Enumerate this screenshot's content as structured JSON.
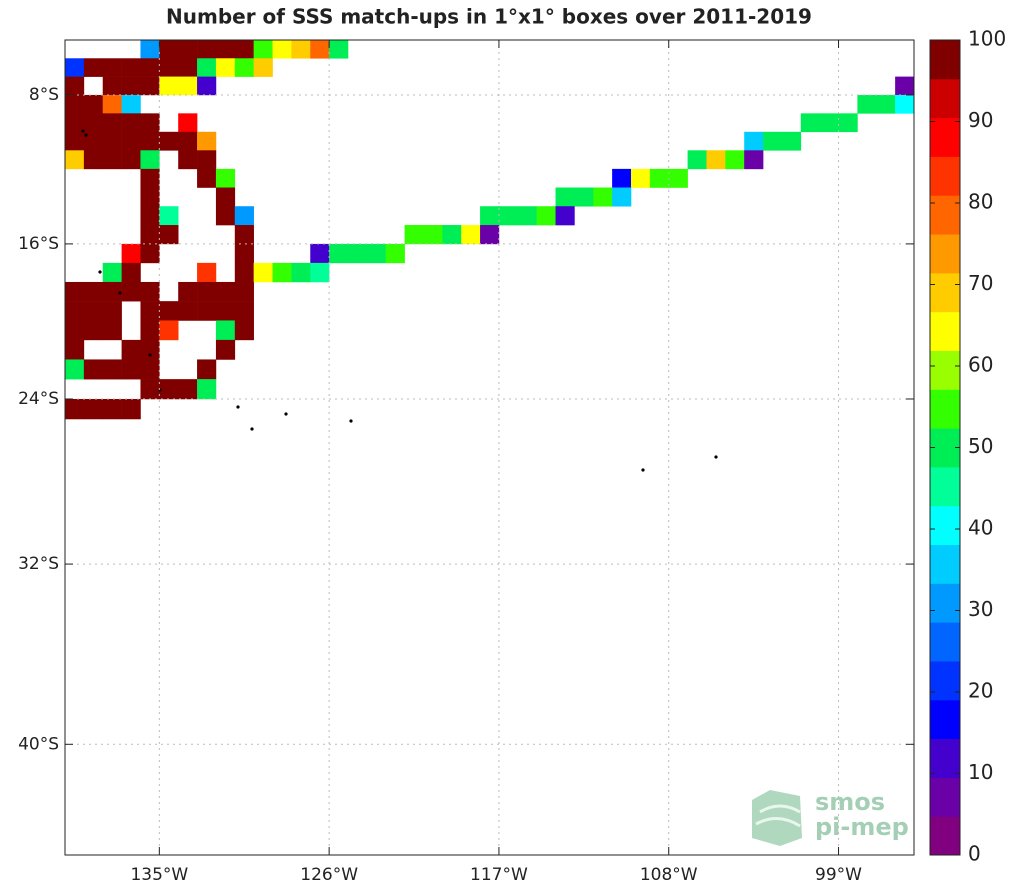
{
  "chart_data": {
    "type": "heatmap-map",
    "title": "Number of SSS match-ups in 1°x1° boxes over 2011-2019",
    "projection": "mercator",
    "xlim": [
      -140,
      -95
    ],
    "ylim": [
      -44.5,
      -5
    ],
    "xticks": [
      {
        "value": -135,
        "label": "135°W"
      },
      {
        "value": -126,
        "label": "126°W"
      },
      {
        "value": -117,
        "label": "117°W"
      },
      {
        "value": -108,
        "label": "108°W"
      },
      {
        "value": -99,
        "label": "99°W"
      }
    ],
    "yticks": [
      {
        "value": -8,
        "label": "8°S"
      },
      {
        "value": -16,
        "label": "16°S"
      },
      {
        "value": -24,
        "label": "24°S"
      },
      {
        "value": -32,
        "label": "32°S"
      },
      {
        "value": -40,
        "label": "40°S"
      }
    ],
    "grid": true,
    "clim": [
      0,
      100
    ],
    "cticks": [
      0,
      10,
      20,
      30,
      40,
      50,
      60,
      70,
      80,
      90,
      100
    ],
    "colormap": [
      "#80007f",
      "#6a00a8",
      "#4400cc",
      "#0000ff",
      "#0033ff",
      "#0066ff",
      "#0099ff",
      "#00ccff",
      "#00ffff",
      "#00ff99",
      "#00ee55",
      "#33ff00",
      "#99ff00",
      "#ffff00",
      "#ffcc00",
      "#ff9900",
      "#ff6600",
      "#ff3300",
      "#ff0000",
      "#cc0000"
    ],
    "top_color": "#800000",
    "watermark": [
      "smos",
      "pi-mep"
    ],
    "cells": [
      [
        -136,
        -5,
        32
      ],
      [
        -135,
        -5,
        98
      ],
      [
        -134,
        -5,
        98
      ],
      [
        -133,
        -5,
        98
      ],
      [
        -132,
        -5,
        98
      ],
      [
        -131,
        -5,
        98
      ],
      [
        -130,
        -5,
        57
      ],
      [
        -129,
        -5,
        62
      ],
      [
        -128,
        -5,
        68
      ],
      [
        -127,
        -5,
        77
      ],
      [
        -126,
        -5,
        52
      ],
      [
        -140,
        -6,
        22
      ],
      [
        -139,
        -6,
        98
      ],
      [
        -138,
        -6,
        98
      ],
      [
        -137,
        -6,
        98
      ],
      [
        -136,
        -6,
        98
      ],
      [
        -135,
        -6,
        98
      ],
      [
        -134,
        -6,
        98
      ],
      [
        -133,
        -6,
        52
      ],
      [
        -132,
        -6,
        62
      ],
      [
        -131,
        -6,
        57
      ],
      [
        -130,
        -6,
        68
      ],
      [
        -140,
        -7,
        98
      ],
      [
        -138,
        -7,
        98
      ],
      [
        -137,
        -7,
        98
      ],
      [
        -136,
        -7,
        98
      ],
      [
        -135,
        -7,
        62
      ],
      [
        -134,
        -7,
        62
      ],
      [
        -133,
        -7,
        12
      ],
      [
        -96,
        -7,
        8
      ],
      [
        -140,
        -8,
        98
      ],
      [
        -139,
        -8,
        98
      ],
      [
        -138,
        -8,
        77
      ],
      [
        -137,
        -8,
        38
      ],
      [
        -98,
        -8,
        52
      ],
      [
        -97,
        -8,
        52
      ],
      [
        -96,
        -8,
        42
      ],
      [
        -140,
        -9,
        98
      ],
      [
        -139,
        -9,
        98
      ],
      [
        -138,
        -9,
        98
      ],
      [
        -137,
        -9,
        98
      ],
      [
        -136,
        -9,
        98
      ],
      [
        -134,
        -9,
        88
      ],
      [
        -101,
        -9,
        52
      ],
      [
        -100,
        -9,
        52
      ],
      [
        -99,
        -9,
        52
      ],
      [
        -140,
        -10,
        98
      ],
      [
        -139,
        -10,
        98
      ],
      [
        -138,
        -10,
        98
      ],
      [
        -137,
        -10,
        98
      ],
      [
        -136,
        -10,
        98
      ],
      [
        -135,
        -10,
        98
      ],
      [
        -134,
        -10,
        98
      ],
      [
        -133,
        -10,
        72
      ],
      [
        -104,
        -10,
        38
      ],
      [
        -103,
        -10,
        52
      ],
      [
        -102,
        -10,
        52
      ],
      [
        -140,
        -11,
        68
      ],
      [
        -139,
        -11,
        98
      ],
      [
        -138,
        -11,
        98
      ],
      [
        -137,
        -11,
        98
      ],
      [
        -136,
        -11,
        52
      ],
      [
        -134,
        -11,
        98
      ],
      [
        -133,
        -11,
        98
      ],
      [
        -107,
        -11,
        52
      ],
      [
        -106,
        -11,
        68
      ],
      [
        -105,
        -11,
        57
      ],
      [
        -104,
        -11,
        8
      ],
      [
        -136,
        -12,
        98
      ],
      [
        -133,
        -12,
        98
      ],
      [
        -132,
        -12,
        57
      ],
      [
        -111,
        -12,
        18
      ],
      [
        -110,
        -12,
        62
      ],
      [
        -109,
        -12,
        57
      ],
      [
        -108,
        -12,
        57
      ],
      [
        -136,
        -13,
        98
      ],
      [
        -132,
        -13,
        98
      ],
      [
        -114,
        -13,
        52
      ],
      [
        -113,
        -13,
        52
      ],
      [
        -112,
        -13,
        57
      ],
      [
        -111,
        -13,
        38
      ],
      [
        -136,
        -14,
        98
      ],
      [
        -135,
        -14,
        43
      ],
      [
        -132,
        -14,
        98
      ],
      [
        -131,
        -14,
        32
      ],
      [
        -118,
        -14,
        52
      ],
      [
        -117,
        -14,
        52
      ],
      [
        -116,
        -14,
        52
      ],
      [
        -115,
        -14,
        57
      ],
      [
        -114,
        -14,
        12
      ],
      [
        -136,
        -15,
        98
      ],
      [
        -135,
        -15,
        98
      ],
      [
        -131,
        -15,
        98
      ],
      [
        -122,
        -15,
        57
      ],
      [
        -121,
        -15,
        57
      ],
      [
        -120,
        -15,
        52
      ],
      [
        -119,
        -15,
        62
      ],
      [
        -118,
        -15,
        8
      ],
      [
        -137,
        -16,
        88
      ],
      [
        -136,
        -16,
        98
      ],
      [
        -131,
        -16,
        98
      ],
      [
        -127,
        -16,
        12
      ],
      [
        -126,
        -16,
        52
      ],
      [
        -125,
        -16,
        52
      ],
      [
        -124,
        -16,
        48
      ],
      [
        -123,
        -16,
        57
      ],
      [
        -138,
        -17,
        52
      ],
      [
        -137,
        -17,
        98
      ],
      [
        -133,
        -17,
        82
      ],
      [
        -131,
        -17,
        98
      ],
      [
        -130,
        -17,
        62
      ],
      [
        -129,
        -17,
        57
      ],
      [
        -128,
        -17,
        52
      ],
      [
        -127,
        -17,
        43
      ],
      [
        -140,
        -18,
        98
      ],
      [
        -139,
        -18,
        98
      ],
      [
        -138,
        -18,
        98
      ],
      [
        -137,
        -18,
        98
      ],
      [
        -136,
        -18,
        98
      ],
      [
        -134,
        -18,
        98
      ],
      [
        -133,
        -18,
        98
      ],
      [
        -132,
        -18,
        98
      ],
      [
        -131,
        -18,
        98
      ],
      [
        -140,
        -19,
        98
      ],
      [
        -139,
        -19,
        98
      ],
      [
        -138,
        -19,
        98
      ],
      [
        -136,
        -19,
        98
      ],
      [
        -135,
        -19,
        98
      ],
      [
        -134,
        -19,
        98
      ],
      [
        -133,
        -19,
        98
      ],
      [
        -132,
        -19,
        98
      ],
      [
        -131,
        -19,
        98
      ],
      [
        -140,
        -20,
        98
      ],
      [
        -139,
        -20,
        98
      ],
      [
        -138,
        -20,
        98
      ],
      [
        -136,
        -20,
        98
      ],
      [
        -135,
        -20,
        82
      ],
      [
        -132,
        -20,
        52
      ],
      [
        -131,
        -20,
        98
      ],
      [
        -140,
        -21,
        98
      ],
      [
        -137,
        -21,
        98
      ],
      [
        -136,
        -21,
        98
      ],
      [
        -132,
        -21,
        98
      ],
      [
        -140,
        -22,
        52
      ],
      [
        -139,
        -22,
        98
      ],
      [
        -138,
        -22,
        98
      ],
      [
        -137,
        -22,
        98
      ],
      [
        -136,
        -22,
        98
      ],
      [
        -133,
        -22,
        98
      ],
      [
        -136,
        -23,
        98
      ],
      [
        -135,
        -23,
        98
      ],
      [
        -134,
        -23,
        98
      ],
      [
        -133,
        -23,
        52
      ],
      [
        -140,
        -24,
        98
      ],
      [
        -139,
        -24,
        98
      ],
      [
        -138,
        -24,
        98
      ],
      [
        -137,
        -24,
        98
      ]
    ]
  }
}
